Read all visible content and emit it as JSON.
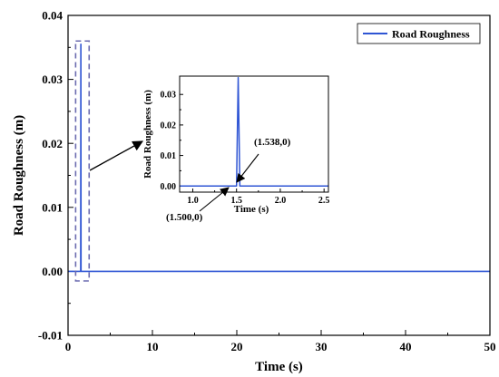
{
  "chart_data": [
    {
      "id": "main",
      "type": "line",
      "title": "",
      "xlabel": "Time (s)",
      "ylabel": "Road Roughness (m)",
      "xlim": [
        0,
        50
      ],
      "ylim": [
        -0.01,
        0.04
      ],
      "xticks": [
        0,
        10,
        20,
        30,
        40,
        50
      ],
      "yticks": [
        -0.01,
        0.0,
        0.01,
        0.02,
        0.03,
        0.04
      ],
      "xtick_labels": [
        "0",
        "10",
        "20",
        "30",
        "40",
        "50"
      ],
      "ytick_labels": [
        "-0.01",
        "0.00",
        "0.01",
        "0.02",
        "0.03",
        "0.04"
      ],
      "grid": false,
      "legend_position": "top-right",
      "series": [
        {
          "name": "Road Roughness",
          "color": "#2f55d4",
          "x": [
            0,
            1.5,
            1.519,
            1.538,
            50
          ],
          "y": [
            0,
            0,
            0.0355,
            0,
            0
          ]
        }
      ],
      "highlight_box": {
        "x": [
          0.9,
          2.5
        ],
        "y": [
          -0.0015,
          0.036
        ],
        "color": "#6b6bb0"
      }
    },
    {
      "id": "inset",
      "type": "line",
      "title": "",
      "xlabel": "Time (s)",
      "ylabel": "Road Roughness (m)",
      "xlim": [
        0.85,
        2.55
      ],
      "ylim": [
        -0.002,
        0.036
      ],
      "xticks": [
        1.0,
        1.5,
        2.0,
        2.5
      ],
      "yticks": [
        0.0,
        0.01,
        0.02,
        0.03
      ],
      "xtick_labels": [
        "1.0",
        "1.5",
        "2.0",
        "2.5"
      ],
      "ytick_labels": [
        "0.00",
        "0.01",
        "0.02",
        "0.03"
      ],
      "series": [
        {
          "color": "#2f55d4",
          "x": [
            0.85,
            1.5,
            1.519,
            1.538,
            2.55
          ],
          "y": [
            0,
            0,
            0.0355,
            0,
            0
          ]
        }
      ],
      "annotations": [
        {
          "text": "(1.500,0)",
          "x": 1.5,
          "y": 0
        },
        {
          "text": "(1.538,0)",
          "x": 1.538,
          "y": 0
        }
      ]
    }
  ]
}
